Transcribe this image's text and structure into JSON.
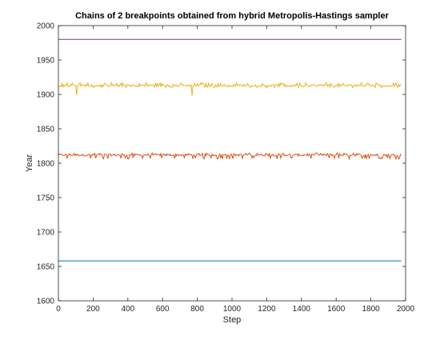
{
  "chart_data": {
    "type": "line",
    "title": "Chains of 2 breakpoints obtained from hybrid Metropolis-Hastings sampler",
    "xlabel": "Step",
    "ylabel": "Year",
    "xlim": [
      0,
      2000
    ],
    "ylim": [
      1600,
      2000
    ],
    "x_ticks": [
      "0",
      "200",
      "400",
      "600",
      "800",
      "1000",
      "1200",
      "1400",
      "1600",
      "1800",
      "2000"
    ],
    "y_ticks": [
      "1600",
      "1650",
      "1700",
      "1750",
      "1800",
      "1850",
      "1900",
      "1950",
      "2000"
    ],
    "grid": false,
    "legend": "none",
    "x_range": [
      0,
      1975
    ],
    "series": [
      {
        "color": "#0072BD",
        "base": 1658,
        "values_description_free": true,
        "noise": [
          0,
          0
        ],
        "dips": []
      },
      {
        "color": "#D95319",
        "base": 1812,
        "noise": [
          1806,
          1815
        ],
        "dips": []
      },
      {
        "color": "#EDB120",
        "base": 1913,
        "noise": [
          1910,
          1917
        ],
        "dips": [
          {
            "x": 103,
            "y": 1899
          },
          {
            "x": 770,
            "y": 1898
          }
        ]
      },
      {
        "color": "#7E2F8E",
        "base": 1980,
        "noise": [
          0,
          0
        ],
        "dips": []
      }
    ]
  }
}
